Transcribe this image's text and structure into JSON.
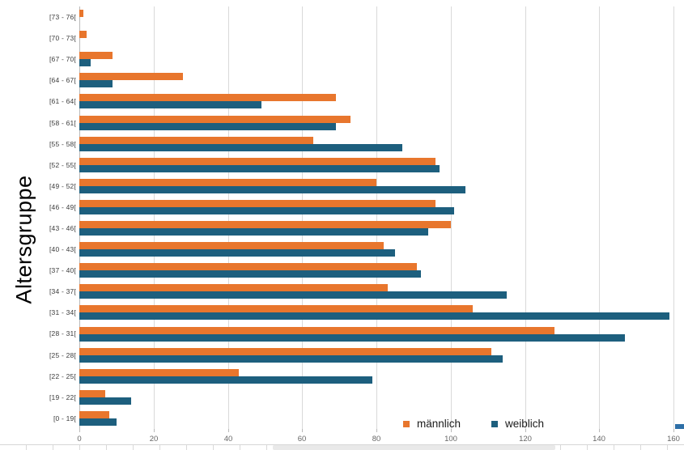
{
  "chart_data": {
    "type": "bar",
    "orientation": "horizontal",
    "title": "",
    "xlabel": "",
    "ylabel": "Altersgruppe",
    "xlim": [
      0,
      160
    ],
    "xticks": [
      0,
      20,
      40,
      60,
      80,
      100,
      120,
      140,
      160
    ],
    "grid": true,
    "legend_position": "bottom",
    "categories": [
      "[73 - 76[",
      "[70 - 73[",
      "[67 - 70[",
      "[64 - 67[",
      "[61 - 64[",
      "[58 - 61[",
      "[55 - 58[",
      "[52 - 55[",
      "[49 - 52[",
      "[46 - 49[",
      "[43 - 46[",
      "[40 - 43[",
      "[37 - 40[",
      "[34 - 37[",
      "[31 - 34[",
      "[28 - 31[",
      "[25 - 28[",
      "[22 - 25[",
      "[19 - 22[",
      "[0 - 19["
    ],
    "series": [
      {
        "name": "männlich",
        "color": "#e8762d",
        "values": [
          1,
          2,
          9,
          28,
          69,
          73,
          63,
          96,
          80,
          96,
          100,
          82,
          91,
          83,
          106,
          128,
          111,
          43,
          7,
          8
        ]
      },
      {
        "name": "weiblich",
        "color": "#1d5f7e",
        "values": [
          0,
          0,
          3,
          9,
          49,
          69,
          87,
          97,
          104,
          101,
          94,
          85,
          92,
          115,
          159,
          147,
          114,
          79,
          14,
          10
        ]
      }
    ]
  },
  "colors": {
    "gridline": "#d9d9d9",
    "axis_line": "#b9b9b9",
    "x_tick_label": "#666666",
    "y_tick_label": "#3c3c3c"
  }
}
